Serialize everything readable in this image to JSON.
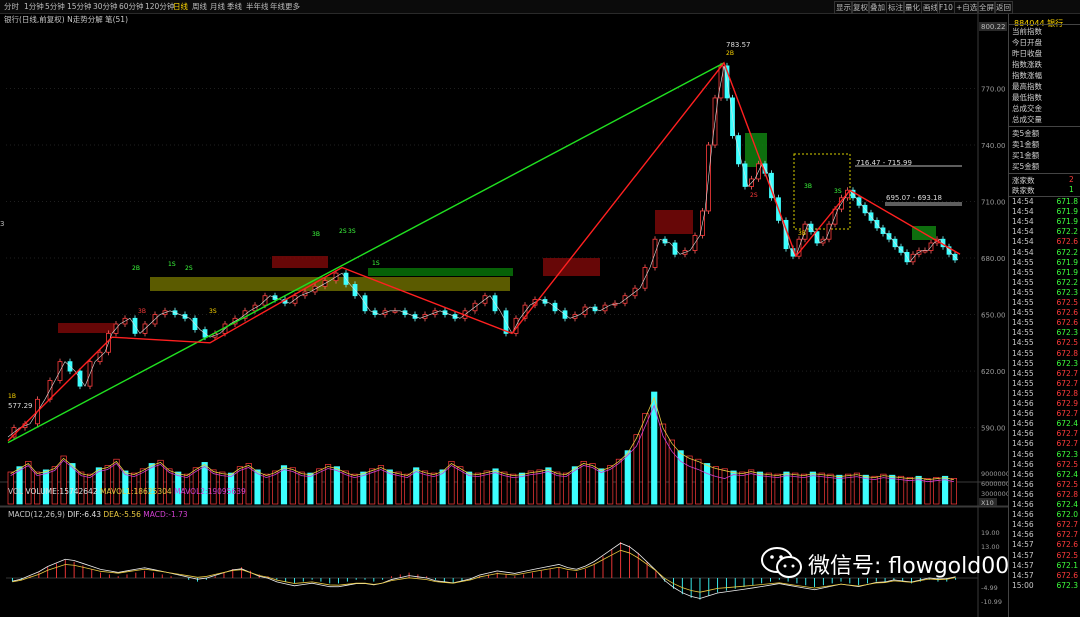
{
  "toolbar": {
    "periods": [
      "分时",
      "1分钟",
      "5分钟",
      "15分钟",
      "30分钟",
      "60分钟",
      "120分钟",
      "日线",
      "周线",
      "月线",
      "季线",
      "半年线",
      "年线更多"
    ],
    "active_period": "日线",
    "right_buttons": [
      "显示",
      "复权",
      "叠加",
      "标注",
      "量化",
      "画线",
      "F10",
      "+自选",
      "全屏",
      "返回"
    ]
  },
  "title_line": "银行(日线,前复权) N走势分解 笔(51)",
  "price_axis": {
    "top_value": "800.22",
    "labels": [
      "770.00",
      "740.00",
      "710.00",
      "680.00",
      "650.00",
      "620.00",
      "590.00"
    ],
    "left_marker": "3"
  },
  "price_annotations": {
    "high": "783.57",
    "low": "577.29",
    "range1": "716.47 - 715.99",
    "range2": "695.07 - 693.18"
  },
  "stroke_labels": [
    "1B",
    "2B",
    "3B",
    "1S",
    "2S",
    "3S",
    "3B",
    "2S",
    "3S",
    "1S",
    "2S",
    "3B",
    "3S",
    "3B",
    "2B"
  ],
  "volume": {
    "label": "VOL",
    "volume_text": "VOLUME:15742642",
    "mavol1_text": "MAVOL1:18625304",
    "mavol2_text": "MAVOL2:19095639",
    "axis": [
      "9000000",
      "6000000",
      "3000000"
    ],
    "unit": "X10"
  },
  "macd": {
    "label": "MACD(12,26,9)",
    "dif_text": "DIF:-6.43",
    "dea_text": "DEA:-5.56",
    "macd_text": "MACD:-1.73",
    "axis": [
      "19.00",
      "13.00",
      "-4.99",
      "-10.99"
    ]
  },
  "right_panel": {
    "code": "884044",
    "name": "银行",
    "items": [
      "当前指数",
      "今日开盘",
      "昨日收盘",
      "指数涨跌",
      "指数涨幅",
      "最高指数",
      "最低指数",
      "总成交金",
      "总成交量"
    ],
    "items2": [
      "卖5金额",
      "卖1金额",
      "买1金额",
      "买5金额"
    ],
    "items3": [
      "涨家数",
      "跌家数"
    ],
    "items3_values": [
      "2",
      "1"
    ],
    "ticks": [
      {
        "t": "14:54",
        "p": "671.8",
        "d": "dn"
      },
      {
        "t": "14:54",
        "p": "671.9",
        "d": "dn"
      },
      {
        "t": "14:54",
        "p": "671.9",
        "d": "dn"
      },
      {
        "t": "14:54",
        "p": "672.2",
        "d": "dn"
      },
      {
        "t": "14:54",
        "p": "672.6",
        "d": "up"
      },
      {
        "t": "14:54",
        "p": "672.2",
        "d": "dn"
      },
      {
        "t": "14:55",
        "p": "671.9",
        "d": "dn"
      },
      {
        "t": "14:55",
        "p": "671.9",
        "d": "dn"
      },
      {
        "t": "14:55",
        "p": "672.2",
        "d": "dn"
      },
      {
        "t": "14:55",
        "p": "672.3",
        "d": "dn"
      },
      {
        "t": "14:55",
        "p": "672.5",
        "d": "up"
      },
      {
        "t": "14:55",
        "p": "672.6",
        "d": "up"
      },
      {
        "t": "14:55",
        "p": "672.6",
        "d": "up"
      },
      {
        "t": "14:55",
        "p": "672.3",
        "d": "dn"
      },
      {
        "t": "14:55",
        "p": "672.5",
        "d": "up"
      },
      {
        "t": "14:55",
        "p": "672.8",
        "d": "up"
      },
      {
        "t": "14:55",
        "p": "672.3",
        "d": "dn"
      },
      {
        "t": "14:55",
        "p": "672.7",
        "d": "up"
      },
      {
        "t": "14:55",
        "p": "672.7",
        "d": "up"
      },
      {
        "t": "14:55",
        "p": "672.8",
        "d": "up"
      },
      {
        "t": "14:56",
        "p": "672.9",
        "d": "up"
      },
      {
        "t": "14:56",
        "p": "672.7",
        "d": "up"
      },
      {
        "t": "14:56",
        "p": "672.4",
        "d": "dn"
      },
      {
        "t": "14:56",
        "p": "672.7",
        "d": "up"
      },
      {
        "t": "14:56",
        "p": "672.7",
        "d": "up"
      },
      {
        "t": "14:56",
        "p": "672.3",
        "d": "dn"
      },
      {
        "t": "14:56",
        "p": "672.5",
        "d": "up"
      },
      {
        "t": "14:56",
        "p": "672.4",
        "d": "dn"
      },
      {
        "t": "14:56",
        "p": "672.5",
        "d": "up"
      },
      {
        "t": "14:56",
        "p": "672.8",
        "d": "up"
      },
      {
        "t": "14:56",
        "p": "672.4",
        "d": "dn"
      },
      {
        "t": "14:56",
        "p": "672.0",
        "d": "dn"
      },
      {
        "t": "14:56",
        "p": "672.7",
        "d": "up"
      },
      {
        "t": "14:56",
        "p": "672.7",
        "d": "up"
      },
      {
        "t": "14:57",
        "p": "672.6",
        "d": "up"
      },
      {
        "t": "14:57",
        "p": "672.5",
        "d": "up"
      },
      {
        "t": "14:57",
        "p": "672.1",
        "d": "dn"
      },
      {
        "t": "14:57",
        "p": "672.6",
        "d": "up"
      },
      {
        "t": "15:00",
        "p": "672.3",
        "d": "dn"
      }
    ]
  },
  "watermark": "微信号: flowgold00",
  "colors": {
    "up": "#ff3b3b",
    "down": "#3dffff",
    "red_line": "#ff2020",
    "green_line": "#20e020",
    "yellow_band": "#8a8a00"
  }
}
